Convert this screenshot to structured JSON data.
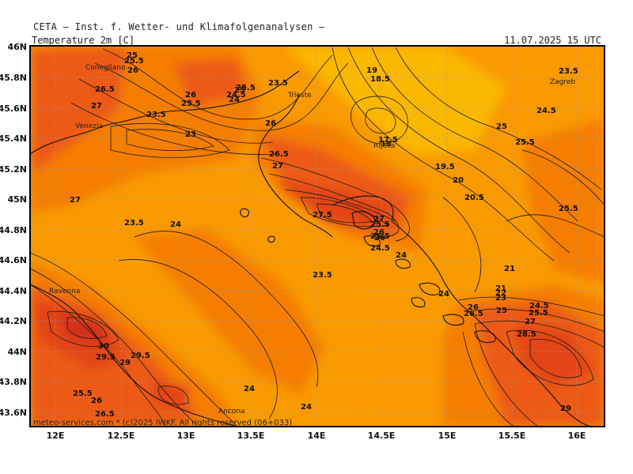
{
  "header": {
    "title": "CETA — Inst. f. Wetter- und Klimafolgenanalysen —",
    "variable": "Temperature_2m [C]",
    "valid_time": "11.07.2025 15 UTC"
  },
  "footer": "meteo-services.com * (c)2025 IWKF. All rights reserved (06+033)",
  "colors": {
    "frame": "#000000",
    "band_cool": "#fbb800",
    "band_mild": "#f99a00",
    "band_warm": "#f57e05",
    "band_hot": "#ec5a12",
    "band_hotter": "#e34418",
    "band_hottest": "#d52e1a",
    "contour": "#1a1a1a",
    "coastline": "#111111",
    "grid": "#9a9a9a"
  },
  "map_data": {
    "lon_range": [
      11.8,
      16.2
    ],
    "lat_range": [
      43.55,
      46.05
    ],
    "x_ticks": [
      "12E",
      "12.5E",
      "13E",
      "13.5E",
      "14E",
      "14.5E",
      "15E",
      "15.5E",
      "16E"
    ],
    "y_ticks": [
      "46N",
      "45.8N",
      "45.6N",
      "45.4N",
      "45.2N",
      "45N",
      "44.8N",
      "44.6N",
      "44.4N",
      "44.2N",
      "44N",
      "43.8N",
      "43.6N"
    ],
    "cities": [
      "Conegliano",
      "Venezia",
      "Trieste",
      "Rijeka",
      "Zagreb",
      "Ravenna",
      "Ancona"
    ],
    "contour_labels": [
      "25",
      "25.5",
      "26",
      "26.5",
      "27",
      "23.5",
      "23",
      "26",
      "25.5",
      "24.5",
      "24",
      "25",
      "25.5",
      "26",
      "26.5",
      "27",
      "23.5",
      "19",
      "18.5",
      "17.5",
      "18",
      "19.5",
      "20",
      "20.5",
      "23.5",
      "24.5",
      "25",
      "25.5",
      "25.5",
      "27",
      "23.5",
      "24",
      "27.5",
      "27",
      "25.5",
      "26",
      "25.5",
      "26",
      "24.5",
      "24",
      "23.5",
      "21",
      "24",
      "21",
      "22",
      "23",
      "26",
      "26.5",
      "25",
      "24.5",
      "25.5",
      "27",
      "28.5",
      "30",
      "29.5",
      "29",
      "29.5",
      "25.5",
      "26",
      "26.5",
      "24",
      "24",
      "29"
    ]
  }
}
